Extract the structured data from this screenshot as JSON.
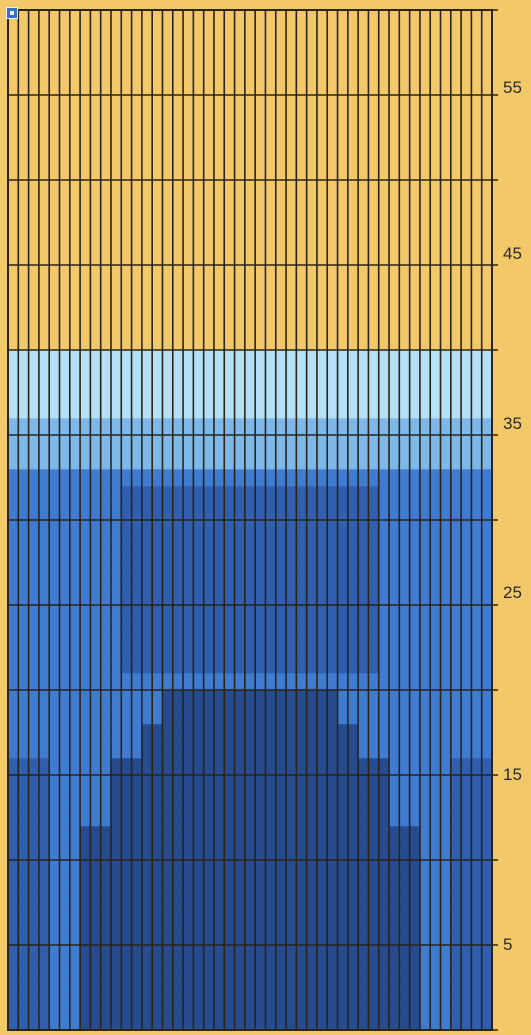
{
  "chart_data": {
    "type": "heatmap",
    "title": "",
    "columns": 47,
    "rows": 60,
    "row_labels": [
      "55",
      "45",
      "35",
      "25",
      "15",
      "5"
    ],
    "colors": {
      "background": "#f3c868",
      "grid": "#2a2419",
      "light_blue": "#b6e0f5",
      "mid_blue": "#7eb8e8",
      "blue": "#3f7bd0",
      "medium_dark_blue": "#2f5fae",
      "dark_blue": "#264b8f"
    },
    "pattern_description_rows": {
      "yellow": [
        41,
        60
      ],
      "blue_field": [
        1,
        40
      ]
    }
  },
  "icons": {
    "corner": "square-window-icon"
  }
}
